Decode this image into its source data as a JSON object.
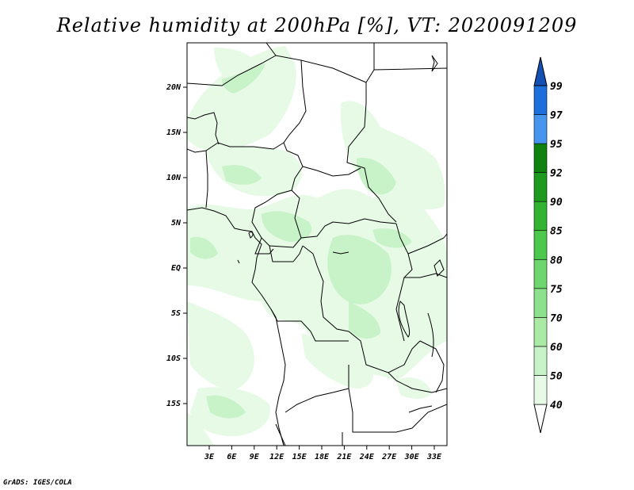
{
  "title": "Relative humidity at 200hPa [%], VT: 2020091209",
  "footer": "GrADS: IGES/COLA",
  "map": {
    "lat_ticks": [
      "20N",
      "15N",
      "10N",
      "5N",
      "EQ",
      "5S",
      "10S",
      "15S"
    ],
    "lon_ticks": [
      "3E",
      "6E",
      "9E",
      "12E",
      "15E",
      "18E",
      "21E",
      "24E",
      "27E",
      "30E",
      "33E"
    ]
  },
  "colorbar": {
    "levels": [
      "40",
      "50",
      "60",
      "70",
      "75",
      "80",
      "85",
      "90",
      "92",
      "95",
      "97",
      "99"
    ],
    "colors": [
      "#ffffff",
      "#e6fae6",
      "#c8f2c8",
      "#aaeaa5",
      "#8ce28c",
      "#6ed66e",
      "#4cc84c",
      "#32b432",
      "#1e9b1e",
      "#0f820f",
      "#4696f0",
      "#1e6edc",
      "#1450b4"
    ]
  }
}
